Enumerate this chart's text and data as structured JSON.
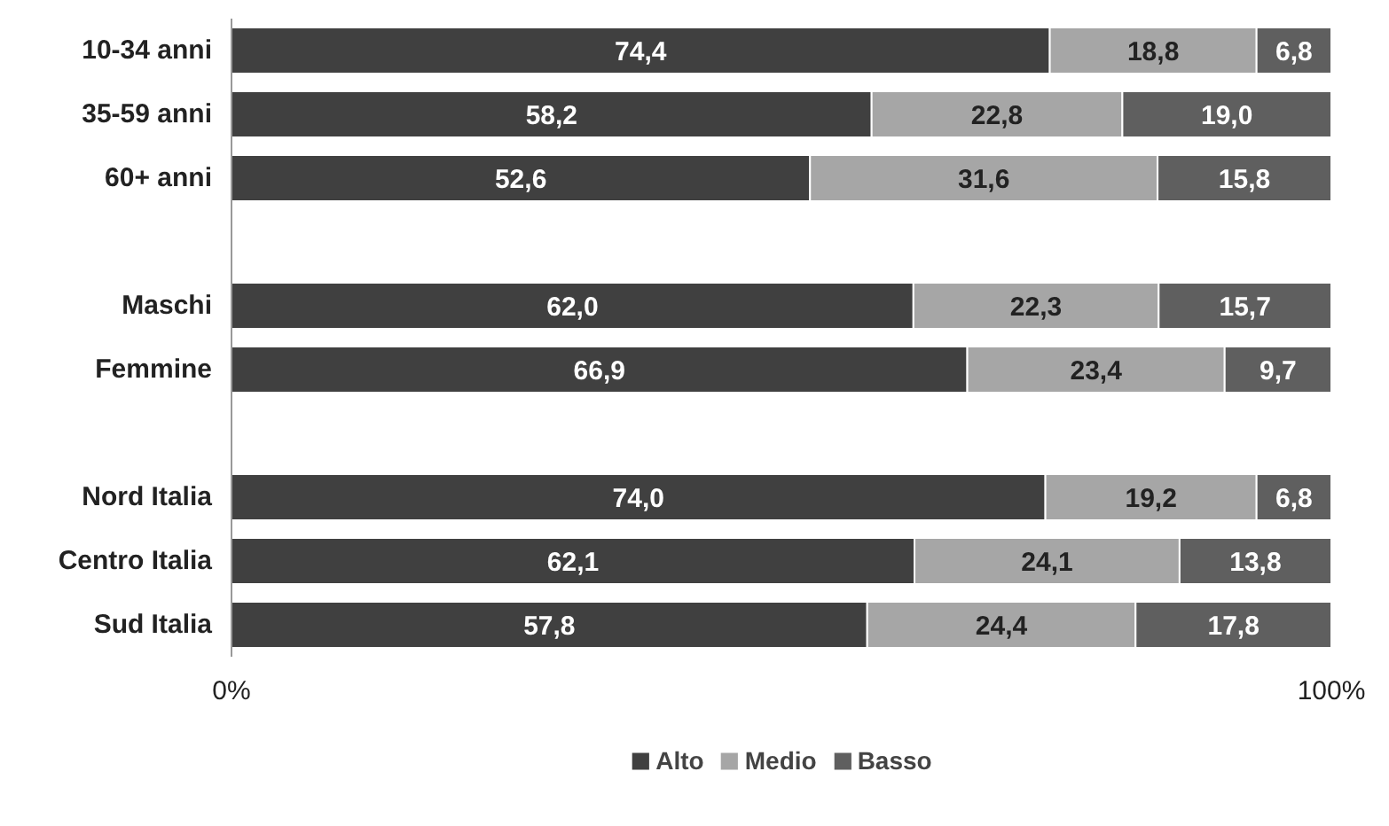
{
  "chart_data": {
    "type": "bar",
    "orientation": "horizontal",
    "stacked": true,
    "categories": [
      "10-34 anni",
      "35-59 anni",
      "60+ anni",
      null,
      "Maschi",
      "Femmine",
      null,
      "Nord Italia",
      "Centro Italia",
      "Sud Italia"
    ],
    "series": [
      {
        "name": "Alto",
        "color": "#404040",
        "values": [
          74.4,
          58.2,
          52.6,
          null,
          62.0,
          66.9,
          null,
          74.0,
          62.1,
          57.8
        ],
        "value_labels": [
          "74,4",
          "58,2",
          "52,6",
          null,
          "62,0",
          "66,9",
          null,
          "74,0",
          "62,1",
          "57,8"
        ]
      },
      {
        "name": "Medio",
        "color": "#a6a6a6",
        "values": [
          18.8,
          22.8,
          31.6,
          null,
          22.3,
          23.4,
          null,
          19.2,
          24.1,
          24.4
        ],
        "value_labels": [
          "18,8",
          "22,8",
          "31,6",
          null,
          "22,3",
          "23,4",
          null,
          "19,2",
          "24,1",
          "24,4"
        ]
      },
      {
        "name": "Basso",
        "color": "#5f5f5f",
        "values": [
          6.8,
          19.0,
          15.8,
          null,
          15.7,
          9.7,
          null,
          6.8,
          13.8,
          17.8
        ],
        "value_labels": [
          "6,8",
          "19,0",
          "15,8",
          null,
          "15,7",
          "9,7",
          null,
          "6,8",
          "13,8",
          "17,8"
        ]
      }
    ],
    "xlim": [
      0,
      100
    ],
    "xticks": [
      {
        "value": 0,
        "label": "0%"
      },
      {
        "value": 100,
        "label": "100%"
      }
    ],
    "legend": "bottom"
  }
}
